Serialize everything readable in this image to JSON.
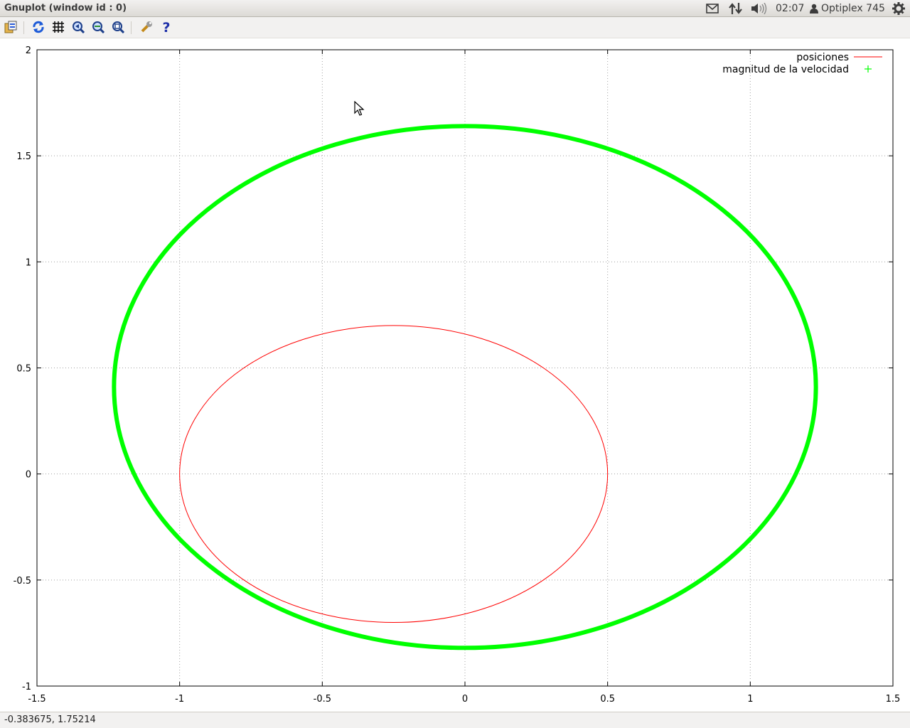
{
  "window": {
    "title": "Gnuplot (window id : 0)"
  },
  "panel": {
    "clock": "02:07",
    "user": "Optiplex 745",
    "icons": [
      "mail-icon",
      "network-icon",
      "volume-icon",
      "user-icon",
      "system-gear-icon"
    ]
  },
  "toolbar": {
    "buttons": [
      "copy-to-clipboard",
      "replot",
      "toggle-grid",
      "zoom-previous",
      "zoom-next",
      "autoscale",
      "options",
      "help"
    ]
  },
  "statusbar": {
    "coordinates": "-0.383675,  1.75214"
  },
  "chart_data": {
    "type": "line",
    "xlim": [
      -1.5,
      1.5
    ],
    "ylim": [
      -1,
      2
    ],
    "xticks": [
      "-1.5",
      "-1",
      "-0.5",
      "0",
      "0.5",
      "1",
      "1.5"
    ],
    "yticks": [
      "-1",
      "-0.5",
      "0",
      "0.5",
      "1",
      "1.5",
      "2"
    ],
    "grid": true,
    "legend_position": "top-right",
    "series": [
      {
        "name": "posiciones",
        "color": "#ff0000",
        "style": "lines",
        "ellipse": {
          "cx": -0.25,
          "cy": 0.0,
          "rx": 0.75,
          "ry": 0.7
        }
      },
      {
        "name": "magnitud de la velocidad",
        "color": "#00ff00",
        "style": "points",
        "ellipse": {
          "cx": 0.0,
          "cy": 0.41,
          "rx": 1.23,
          "ry": 1.23
        }
      }
    ]
  }
}
